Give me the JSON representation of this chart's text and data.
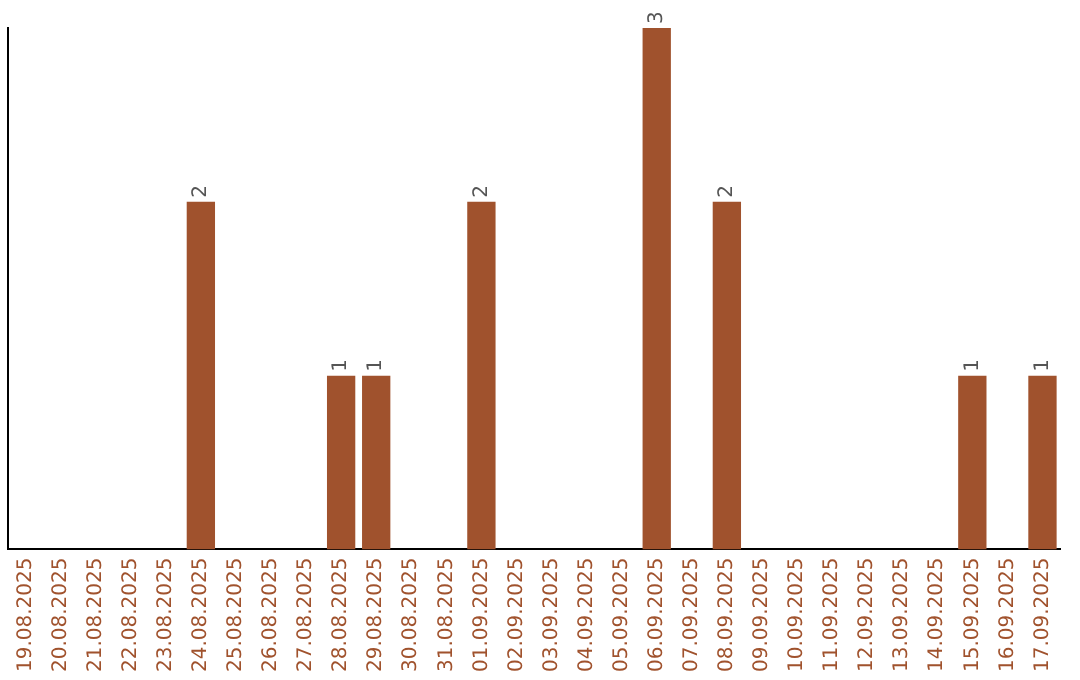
{
  "chart_data": {
    "type": "bar",
    "categories": [
      "19.08.2025",
      "20.08.2025",
      "21.08.2025",
      "22.08.2025",
      "23.08.2025",
      "24.08.2025",
      "25.08.2025",
      "26.08.2025",
      "27.08.2025",
      "28.08.2025",
      "29.08.2025",
      "30.08.2025",
      "31.08.2025",
      "01.09.2025",
      "02.09.2025",
      "03.09.2025",
      "04.09.2025",
      "05.09.2025",
      "06.09.2025",
      "07.09.2025",
      "08.09.2025",
      "09.09.2025",
      "10.09.2025",
      "11.09.2025",
      "12.09.2025",
      "13.09.2025",
      "14.09.2025",
      "15.09.2025",
      "16.09.2025",
      "17.09.2025"
    ],
    "values": [
      0,
      0,
      0,
      0,
      0,
      2,
      0,
      0,
      0,
      1,
      1,
      0,
      0,
      2,
      0,
      0,
      0,
      0,
      3,
      0,
      2,
      0,
      0,
      0,
      0,
      0,
      0,
      1,
      0,
      1
    ],
    "value_labels": [
      null,
      null,
      null,
      null,
      null,
      "2",
      null,
      null,
      null,
      "1",
      "1",
      null,
      null,
      "2",
      null,
      null,
      null,
      null,
      "3",
      null,
      "2",
      null,
      null,
      null,
      null,
      null,
      null,
      "1",
      null,
      "1"
    ],
    "color": "#a0522d",
    "tick_labels": "x",
    "grid": false,
    "legend": false
  }
}
